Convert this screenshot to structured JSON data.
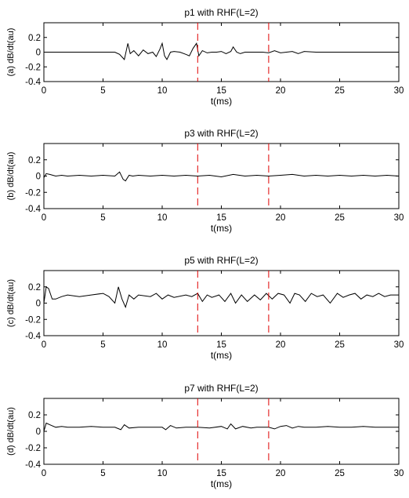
{
  "chart_data": [
    {
      "type": "line",
      "title": "p1 with RHF(L=2)",
      "xlabel": "t(ms)",
      "ylabel": "(a)  dB/dt(au)",
      "xlim": [
        0,
        30
      ],
      "ylim": [
        -0.4,
        0.4
      ],
      "xticks": [
        "0",
        "5",
        "10",
        "15",
        "20",
        "25",
        "30"
      ],
      "yticks": [
        "0.2",
        "0",
        "-0.2",
        "-0.4"
      ],
      "vlines": [
        13,
        19
      ],
      "series": [
        {
          "color": "#000000",
          "x": [
            0,
            1,
            2,
            3,
            4,
            5,
            6,
            6.4,
            6.8,
            7.1,
            7.3,
            7.6,
            8.0,
            8.4,
            8.8,
            9.2,
            9.5,
            9.8,
            10.0,
            10.2,
            10.4,
            10.7,
            11.0,
            11.5,
            12.0,
            12.3,
            12.6,
            12.9,
            13.1,
            13.4,
            13.8,
            14.2,
            14.6,
            15.0,
            15.4,
            15.8,
            16.0,
            16.3,
            16.6,
            17.0,
            17.5,
            18.0,
            18.5,
            19.0,
            19.5,
            20.0,
            20.5,
            21.0,
            21.5,
            22.0,
            23,
            24,
            25,
            26,
            27,
            28,
            29,
            30
          ],
          "y": [
            0,
            0,
            0,
            0,
            0,
            0,
            0,
            -0.03,
            -0.1,
            0.12,
            -0.02,
            0.02,
            -0.05,
            0.03,
            -0.02,
            0.0,
            -0.06,
            0.04,
            0.12,
            -0.05,
            -0.1,
            0.0,
            0.01,
            0.0,
            -0.03,
            -0.05,
            0.05,
            0.12,
            -0.05,
            0.02,
            -0.01,
            0.0,
            0.0,
            0.01,
            -0.02,
            0.01,
            0.07,
            0.0,
            -0.02,
            0.0,
            0.0,
            0.0,
            0.0,
            -0.01,
            0.02,
            -0.01,
            0.0,
            0.01,
            -0.02,
            0.01,
            0,
            0,
            0,
            0,
            0,
            0,
            0,
            0
          ]
        }
      ]
    },
    {
      "type": "line",
      "title": "p3 with RHF(L=2)",
      "xlabel": "t(ms)",
      "ylabel": "(b)  dB/dt(au)",
      "xlim": [
        0,
        30
      ],
      "ylim": [
        -0.4,
        0.4
      ],
      "xticks": [
        "0",
        "5",
        "10",
        "15",
        "20",
        "25",
        "30"
      ],
      "yticks": [
        "0.2",
        "0",
        "-0.2",
        "-0.4"
      ],
      "vlines": [
        13,
        19
      ],
      "series": [
        {
          "color": "#000000",
          "x": [
            0,
            0.2,
            0.5,
            1.0,
            1.5,
            2,
            3,
            4,
            5,
            6,
            6.4,
            6.7,
            6.9,
            7.2,
            7.5,
            8,
            9,
            10,
            11,
            12,
            13,
            14,
            15,
            16,
            17,
            18,
            19,
            20,
            21,
            22,
            23,
            24,
            25,
            26,
            27,
            28,
            29,
            30
          ],
          "y": [
            -0.02,
            0.03,
            0.02,
            0.0,
            0.01,
            0.0,
            0.01,
            0.0,
            0.01,
            0.0,
            0.05,
            -0.04,
            -0.06,
            0.01,
            0.0,
            0.01,
            0.0,
            0.01,
            0.0,
            0.01,
            0.0,
            0.01,
            -0.01,
            0.02,
            0.0,
            0.01,
            0.0,
            0.01,
            0.02,
            0.0,
            0.01,
            0.0,
            0.01,
            0.0,
            0.01,
            0.0,
            0.01,
            0.0
          ]
        }
      ]
    },
    {
      "type": "line",
      "title": "p5 with RHF(L=2)",
      "xlabel": "t(ms)",
      "ylabel": "(c)  dB/dt(au)",
      "xlim": [
        0,
        30
      ],
      "ylim": [
        -0.4,
        0.4
      ],
      "xticks": [
        "0",
        "5",
        "10",
        "15",
        "20",
        "25",
        "30"
      ],
      "yticks": [
        "0.2",
        "0",
        "-0.2",
        "-0.4"
      ],
      "vlines": [
        13,
        19
      ],
      "series": [
        {
          "color": "#000000",
          "x": [
            0,
            0.2,
            0.4,
            0.7,
            1.0,
            1.5,
            2,
            3,
            4,
            5,
            5.5,
            6.0,
            6.3,
            6.6,
            6.9,
            7.2,
            7.6,
            8,
            9,
            9.5,
            10,
            10.5,
            11,
            12,
            12.5,
            13,
            13.4,
            13.8,
            14.2,
            14.8,
            15.3,
            15.8,
            16.2,
            16.7,
            17.2,
            17.8,
            18.3,
            18.8,
            19.3,
            19.8,
            20.3,
            20.8,
            21.2,
            21.6,
            22.1,
            22.6,
            23.1,
            23.6,
            24.2,
            24.8,
            25.3,
            25.8,
            26.3,
            26.8,
            27.3,
            27.8,
            28.3,
            28.8,
            29.3,
            30
          ],
          "y": [
            0.0,
            0.2,
            0.18,
            0.05,
            0.05,
            0.08,
            0.1,
            0.08,
            0.1,
            0.12,
            0.08,
            0.0,
            0.2,
            0.05,
            -0.05,
            0.1,
            0.05,
            0.1,
            0.08,
            0.12,
            0.05,
            0.1,
            0.07,
            0.1,
            0.08,
            0.12,
            0.02,
            0.1,
            0.07,
            0.1,
            0.02,
            0.12,
            0.0,
            0.1,
            0.02,
            0.1,
            0.04,
            0.12,
            0.05,
            0.12,
            0.1,
            0.0,
            0.12,
            0.1,
            0.02,
            0.12,
            0.08,
            0.1,
            0.0,
            0.12,
            0.07,
            0.1,
            0.12,
            0.05,
            0.1,
            0.08,
            0.12,
            0.08,
            0.1,
            0.1
          ]
        }
      ]
    },
    {
      "type": "line",
      "title": "p7 with RHF(L=2)",
      "xlabel": "t(ms)",
      "ylabel": "(d)  dB/dt(au)",
      "xlim": [
        0,
        30
      ],
      "ylim": [
        -0.4,
        0.4
      ],
      "xticks": [
        "0",
        "5",
        "10",
        "15",
        "20",
        "25",
        "30"
      ],
      "yticks": [
        "0.2",
        "0",
        "-0.2",
        "-0.4"
      ],
      "vlines": [
        13,
        19
      ],
      "series": [
        {
          "color": "#000000",
          "x": [
            0,
            0.2,
            0.5,
            1.0,
            1.5,
            2,
            3,
            4,
            5,
            6,
            6.5,
            6.8,
            7.2,
            8,
            9,
            10,
            10.3,
            10.7,
            11.2,
            12,
            13,
            14,
            15,
            15.5,
            15.8,
            16.2,
            16.8,
            17.5,
            18,
            19,
            19.5,
            20,
            20.5,
            21,
            21.5,
            22,
            23,
            24,
            25,
            26,
            27,
            28,
            29,
            30
          ],
          "y": [
            0.0,
            0.1,
            0.08,
            0.05,
            0.06,
            0.05,
            0.05,
            0.06,
            0.05,
            0.05,
            0.02,
            0.08,
            0.04,
            0.05,
            0.05,
            0.05,
            0.02,
            0.07,
            0.04,
            0.05,
            0.05,
            0.04,
            0.06,
            0.03,
            0.09,
            0.03,
            0.06,
            0.04,
            0.05,
            0.05,
            0.03,
            0.06,
            0.07,
            0.04,
            0.06,
            0.05,
            0.05,
            0.06,
            0.05,
            0.05,
            0.06,
            0.05,
            0.05,
            0.05
          ]
        }
      ]
    }
  ]
}
